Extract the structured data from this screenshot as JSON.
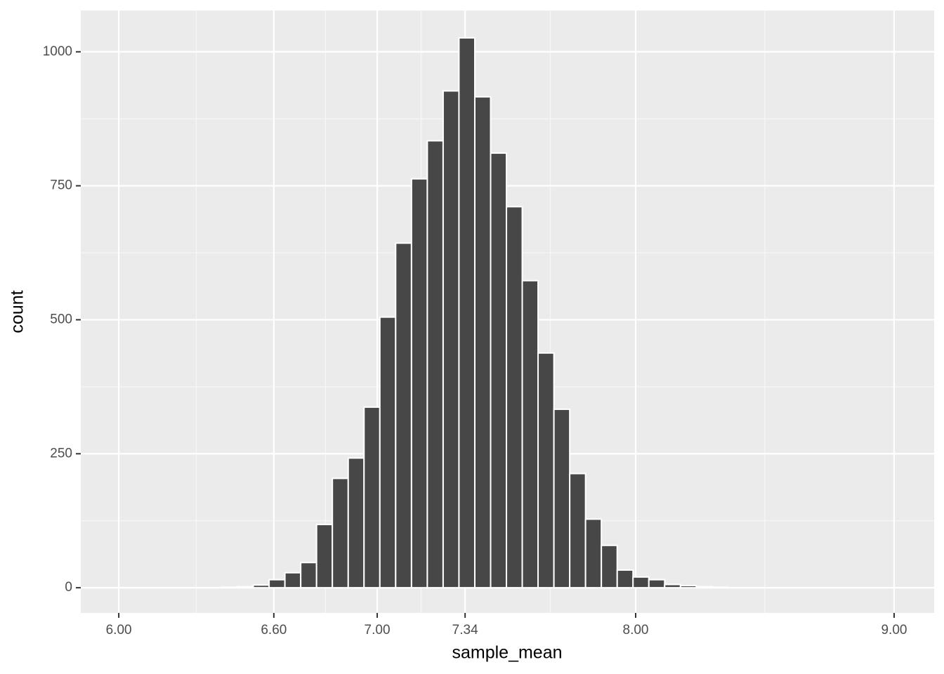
{
  "chart_data": {
    "type": "histogram",
    "x_label": "sample_mean",
    "y_label": "count",
    "bins": [
      5.9694,
      6.0306,
      6.0918,
      6.1531,
      6.2143,
      6.2755,
      6.3367,
      6.398,
      6.4592,
      6.5204,
      6.5816,
      6.6429,
      6.7041,
      6.7653,
      6.8265,
      6.8878,
      6.949,
      7.0102,
      7.0714,
      7.1327,
      7.1939,
      7.2551,
      7.3163,
      7.3776,
      7.4388,
      7.5,
      7.5612,
      7.6224,
      7.6837,
      7.7449,
      7.8061,
      7.8673,
      7.9286,
      7.9898,
      8.051,
      8.1122,
      8.1735,
      8.2347,
      8.2959,
      8.3571,
      8.4184,
      8.4796,
      8.5408,
      8.602,
      8.6633,
      8.7245,
      8.7857,
      8.8469,
      8.9082,
      8.9694,
      9.0306
    ],
    "values": [
      0,
      0,
      0,
      0,
      0,
      0,
      0,
      1,
      2,
      5,
      15,
      28,
      47,
      118,
      204,
      242,
      337,
      505,
      643,
      763,
      834,
      927,
      1026,
      916,
      811,
      711,
      573,
      438,
      333,
      213,
      128,
      79,
      33,
      20,
      15,
      6,
      4,
      2,
      1,
      0,
      0,
      0,
      0,
      0,
      0,
      0,
      0,
      0,
      0,
      0
    ],
    "color": "#474747",
    "edge_color": "#ffffff",
    "xlim": [
      5.853,
      9.155
    ],
    "ylim": [
      -47,
      1077
    ],
    "xticks": [
      {
        "value": 6.0,
        "label": "6.00"
      },
      {
        "value": 6.6,
        "label": "6.60"
      },
      {
        "value": 7.0,
        "label": "7.00"
      },
      {
        "value": 7.34,
        "label": "7.34"
      },
      {
        "value": 8.0,
        "label": "8.00"
      },
      {
        "value": 9.0,
        "label": "9.00"
      }
    ],
    "yticks": [
      0,
      250,
      500,
      750,
      1000
    ],
    "grid": true
  }
}
